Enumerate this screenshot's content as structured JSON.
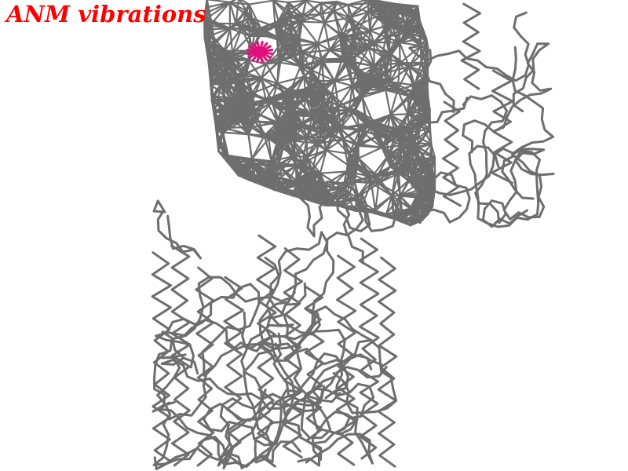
{
  "viewer": {
    "title": "ANM vibrations",
    "title_color": "#ff0000",
    "background": "#ffffff",
    "bond_color": "#6e6e6e",
    "marker_color": "#e0107a",
    "marker_icon": "asterisk-marker-icon"
  }
}
